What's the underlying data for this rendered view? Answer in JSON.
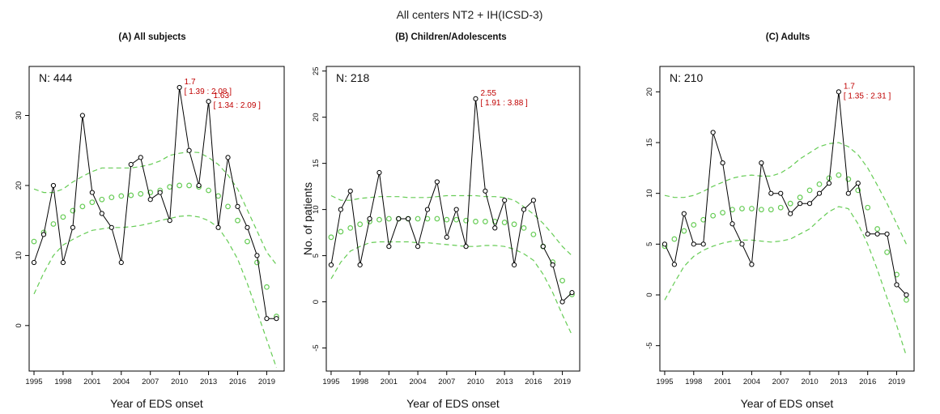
{
  "figure": {
    "title": "All centers NT2 + IH(ICSD-3)",
    "xlabel": "Year of EDS onset",
    "ylabel": "No. of patients"
  },
  "colors": {
    "observed_line": "#000000",
    "fitted": "#66cc55",
    "annotation": "#c00000",
    "axis": "#000000"
  },
  "chart_data": [
    {
      "type": "line",
      "title": "(A) All subjects",
      "n_label": "N: 444",
      "show_ylabel": false,
      "x": [
        1995,
        1996,
        1997,
        1998,
        1999,
        2000,
        2001,
        2002,
        2003,
        2004,
        2005,
        2006,
        2007,
        2008,
        2009,
        2010,
        2011,
        2012,
        2013,
        2014,
        2015,
        2016,
        2017,
        2018,
        2019,
        2020
      ],
      "xticks": [
        1995,
        1998,
        2001,
        2004,
        2007,
        2010,
        2013,
        2016,
        2019
      ],
      "xlim": [
        1994.5,
        2020.8
      ],
      "ylim": [
        -6.5,
        37
      ],
      "yticks": [
        0,
        10,
        20,
        30
      ],
      "series": [
        {
          "values": [
            9,
            13,
            20,
            9,
            14,
            30,
            19,
            16,
            14,
            9,
            23,
            24,
            18,
            19,
            15,
            34,
            25,
            20,
            32,
            14,
            24,
            17,
            14,
            10,
            1,
            1
          ]
        },
        {
          "values": [
            12,
            13.3,
            14.5,
            15.5,
            16.4,
            17,
            17.6,
            18,
            18.3,
            18.5,
            18.6,
            18.8,
            19,
            19.3,
            19.8,
            20,
            20,
            19.8,
            19.3,
            18.5,
            17,
            15,
            12,
            9,
            5.5,
            1.3
          ]
        },
        {
          "values": [
            19.5,
            19,
            19,
            19.5,
            20.5,
            21.3,
            22,
            22.5,
            22.5,
            22.5,
            22.5,
            22.7,
            23,
            23.5,
            24.3,
            24.6,
            24.8,
            24.7,
            24,
            23,
            21.5,
            19.5,
            16.5,
            13.5,
            10.5,
            8.7
          ]
        },
        {
          "values": [
            4.5,
            7.5,
            10,
            11.5,
            12.3,
            13,
            13.6,
            13.8,
            14,
            14,
            14.1,
            14.3,
            14.6,
            15,
            15.3,
            15.6,
            15.7,
            15.5,
            15,
            14,
            12,
            9.5,
            6,
            2,
            -2,
            -6
          ]
        }
      ],
      "annotations": [
        {
          "year": 2010,
          "value": 34,
          "rr": "1.7",
          "ci": "[ 1.39 : 2.08 ]"
        },
        {
          "year": 2013,
          "value": 32,
          "rr": "1.63",
          "ci": "[ 1.34 : 2.09 ]"
        }
      ]
    },
    {
      "type": "line",
      "title": "(B) Children/Adolescents",
      "n_label": "N: 218",
      "show_ylabel": true,
      "x": [
        1995,
        1996,
        1997,
        1998,
        1999,
        2000,
        2001,
        2002,
        2003,
        2004,
        2005,
        2006,
        2007,
        2008,
        2009,
        2010,
        2011,
        2012,
        2013,
        2014,
        2015,
        2016,
        2017,
        2018,
        2019,
        2020
      ],
      "xticks": [
        1995,
        1998,
        2001,
        2004,
        2007,
        2010,
        2013,
        2016,
        2019
      ],
      "xlim": [
        1994.5,
        2020.8
      ],
      "ylim": [
        -7.5,
        25.5
      ],
      "yticks": [
        -5,
        0,
        5,
        10,
        15,
        20,
        25
      ],
      "series": [
        {
          "values": [
            4,
            10,
            12,
            4,
            9,
            14,
            6,
            9,
            9,
            6,
            10,
            13,
            7,
            10,
            6,
            22,
            12,
            8,
            11,
            4,
            10,
            11,
            6,
            4,
            0,
            1
          ]
        },
        {
          "values": [
            7,
            7.6,
            8,
            8.4,
            8.7,
            8.9,
            9,
            9,
            9,
            9,
            9,
            9,
            8.9,
            8.9,
            8.8,
            8.7,
            8.7,
            8.7,
            8.6,
            8.4,
            8,
            7.3,
            6,
            4.3,
            2.3,
            0.8
          ]
        },
        {
          "values": [
            11.5,
            11,
            11,
            11.2,
            11.3,
            11.4,
            11.4,
            11.4,
            11.3,
            11.3,
            11.3,
            11.4,
            11.5,
            11.5,
            11.5,
            11.5,
            11.4,
            11.4,
            11.3,
            11,
            10.3,
            9.5,
            8.5,
            7.3,
            6,
            5
          ]
        },
        {
          "values": [
            2.5,
            4.3,
            5.5,
            6,
            6.4,
            6.5,
            6.5,
            6.5,
            6.5,
            6.4,
            6.4,
            6.3,
            6.2,
            6.1,
            6,
            6,
            6.1,
            6.1,
            6,
            5.7,
            5.2,
            4.5,
            3,
            1,
            -1.4,
            -3.6
          ]
        }
      ],
      "annotations": [
        {
          "year": 2010,
          "value": 22,
          "rr": "2.55",
          "ci": "[ 1.91 : 3.88 ]"
        }
      ]
    },
    {
      "type": "line",
      "title": "(C) Adults",
      "n_label": "N: 210",
      "show_ylabel": false,
      "x": [
        1995,
        1996,
        1997,
        1998,
        1999,
        2000,
        2001,
        2002,
        2003,
        2004,
        2005,
        2006,
        2007,
        2008,
        2009,
        2010,
        2011,
        2012,
        2013,
        2014,
        2015,
        2016,
        2017,
        2018,
        2019,
        2020
      ],
      "xticks": [
        1995,
        1998,
        2001,
        2004,
        2007,
        2010,
        2013,
        2016,
        2019
      ],
      "xlim": [
        1994.5,
        2020.8
      ],
      "ylim": [
        -7.5,
        22.5
      ],
      "yticks": [
        -5,
        0,
        5,
        10,
        15,
        20
      ],
      "series": [
        {
          "values": [
            5,
            3,
            8,
            5,
            5,
            16,
            13,
            7,
            5,
            3,
            13,
            10,
            10,
            8,
            9,
            9,
            10,
            11,
            20,
            10,
            11,
            6,
            6,
            6,
            1,
            0
          ]
        },
        {
          "values": [
            4.8,
            5.5,
            6.3,
            6.9,
            7.4,
            7.8,
            8.1,
            8.4,
            8.5,
            8.5,
            8.4,
            8.4,
            8.6,
            9,
            9.6,
            10.3,
            10.9,
            11.5,
            11.8,
            11.4,
            10.3,
            8.6,
            6.5,
            4.2,
            2,
            -0.5
          ]
        },
        {
          "values": [
            9.8,
            9.6,
            9.6,
            9.8,
            10.2,
            10.7,
            11.1,
            11.5,
            11.7,
            11.8,
            11.7,
            11.7,
            12,
            12.6,
            13.4,
            14,
            14.6,
            14.9,
            15,
            14.6,
            13.8,
            12.5,
            10.8,
            9,
            7,
            5
          ]
        },
        {
          "values": [
            -0.5,
            1.2,
            2.8,
            3.8,
            4.4,
            4.8,
            5.1,
            5.3,
            5.4,
            5.4,
            5.3,
            5.2,
            5.3,
            5.5,
            6,
            6.5,
            7.4,
            8.2,
            8.7,
            8.5,
            7,
            5,
            2.5,
            -0.3,
            -3,
            -6
          ]
        }
      ],
      "annotations": [
        {
          "year": 2013,
          "value": 20,
          "rr": "1.7",
          "ci": "[ 1.35 : 2.31 ]"
        }
      ]
    }
  ]
}
